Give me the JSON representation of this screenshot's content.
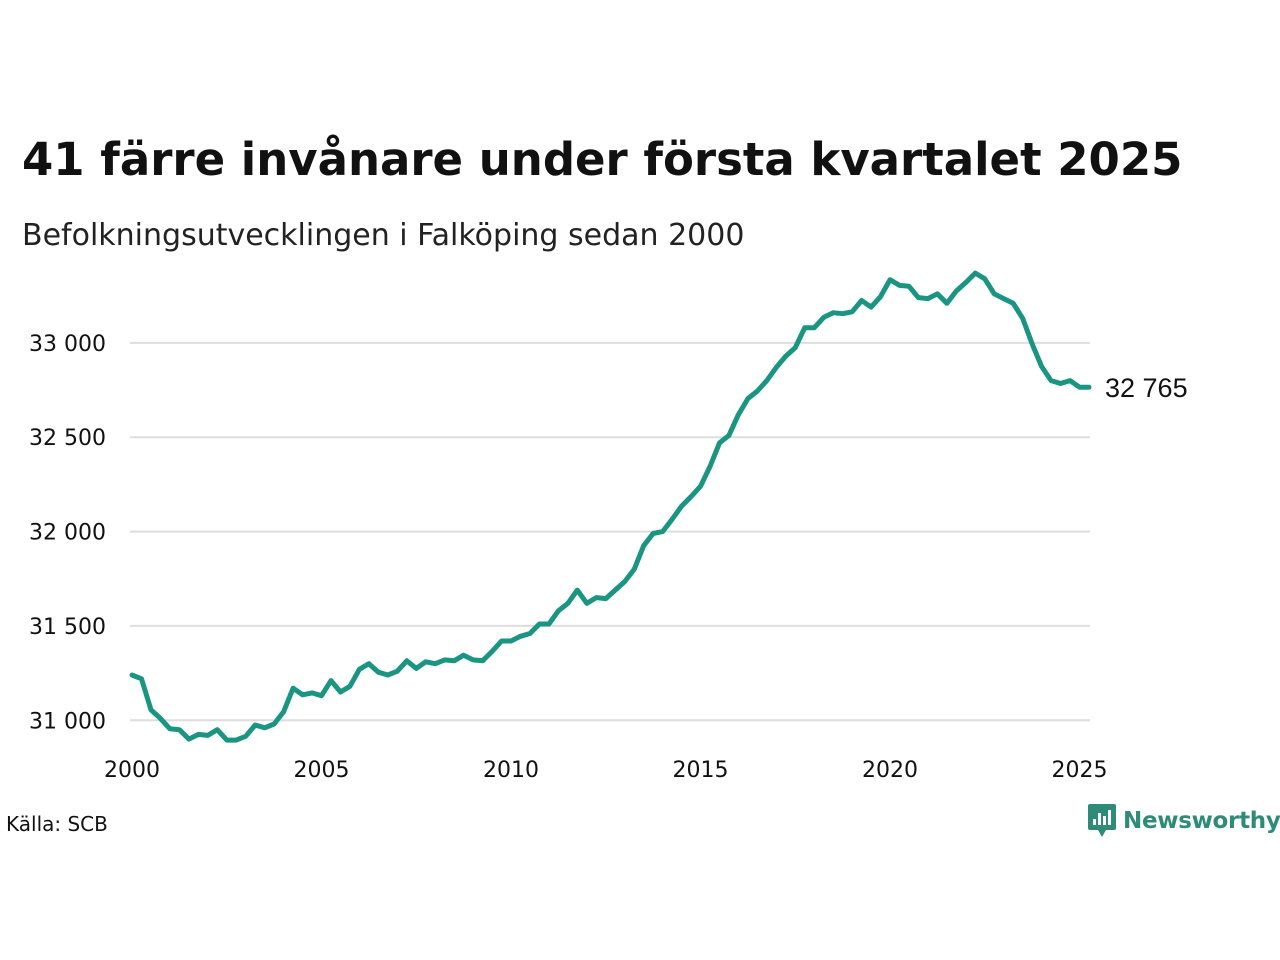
{
  "title": "41 färre invånare under första kvartalet 2025",
  "subtitle": "Befolkningsutvecklingen i Falköping sedan 2000",
  "source": "Källa: SCB",
  "brand": {
    "name": "Newsworthy",
    "icon": "newsworthy-logo-icon",
    "color": "#2e8b78"
  },
  "chart_data": {
    "type": "line",
    "title": "41 färre invånare under första kvartalet 2025",
    "subtitle": "Befolkningsutvecklingen i Falköping sedan 2000",
    "xlabel": "",
    "ylabel": "",
    "xlim": [
      2000,
      2025.25
    ],
    "ylim": [
      30800,
      33450
    ],
    "x_ticks": [
      2000,
      2005,
      2010,
      2015,
      2020,
      2025
    ],
    "x_tick_labels": [
      "2000",
      "2005",
      "2010",
      "2015",
      "2020",
      "2025"
    ],
    "y_ticks": [
      31000,
      31500,
      32000,
      32500,
      33000
    ],
    "y_tick_labels": [
      "31 000",
      "31 500",
      "32 000",
      "32 500",
      "33 000"
    ],
    "grid": "horizontal",
    "line_color": "#1a9582",
    "end_label": "32 765",
    "x": [
      2000.0,
      2000.25,
      2000.5,
      2000.75,
      2001.0,
      2001.25,
      2001.5,
      2001.75,
      2002.0,
      2002.25,
      2002.5,
      2002.75,
      2003.0,
      2003.25,
      2003.5,
      2003.75,
      2004.0,
      2004.25,
      2004.5,
      2004.75,
      2005.0,
      2005.25,
      2005.5,
      2005.75,
      2006.0,
      2006.25,
      2006.5,
      2006.75,
      2007.0,
      2007.25,
      2007.5,
      2007.75,
      2008.0,
      2008.25,
      2008.5,
      2008.75,
      2009.0,
      2009.25,
      2009.5,
      2009.75,
      2010.0,
      2010.25,
      2010.5,
      2010.75,
      2011.0,
      2011.25,
      2011.5,
      2011.75,
      2012.0,
      2012.25,
      2012.5,
      2012.75,
      2013.0,
      2013.25,
      2013.5,
      2013.75,
      2014.0,
      2014.25,
      2014.5,
      2014.75,
      2015.0,
      2015.25,
      2015.5,
      2015.75,
      2016.0,
      2016.25,
      2016.5,
      2016.75,
      2017.0,
      2017.25,
      2017.5,
      2017.75,
      2018.0,
      2018.25,
      2018.5,
      2018.75,
      2019.0,
      2019.25,
      2019.5,
      2019.75,
      2020.0,
      2020.25,
      2020.5,
      2020.75,
      2021.0,
      2021.25,
      2021.5,
      2021.75,
      2022.0,
      2022.25,
      2022.5,
      2022.75,
      2023.0,
      2023.25,
      2023.5,
      2023.75,
      2024.0,
      2024.25,
      2024.5,
      2024.75,
      2025.0,
      2025.25
    ],
    "y": [
      31240,
      31220,
      31055,
      31010,
      30955,
      30950,
      30900,
      30925,
      30920,
      30950,
      30895,
      30895,
      30915,
      30975,
      30960,
      30980,
      31045,
      31170,
      31135,
      31145,
      31130,
      31210,
      31150,
      31180,
      31270,
      31300,
      31255,
      31240,
      31260,
      31315,
      31275,
      31310,
      31300,
      31320,
      31315,
      31345,
      31320,
      31315,
      31365,
      31420,
      31420,
      31445,
      31460,
      31510,
      31510,
      31580,
      31620,
      31690,
      31620,
      31650,
      31645,
      31690,
      31735,
      31800,
      31925,
      31990,
      32000,
      32065,
      32135,
      32185,
      32240,
      32345,
      32470,
      32510,
      32620,
      32705,
      32745,
      32800,
      32870,
      32930,
      32975,
      33080,
      33080,
      33135,
      33160,
      33155,
      33165,
      33225,
      33190,
      33245,
      33335,
      33305,
      33300,
      33240,
      33235,
      33260,
      33210,
      33275,
      33320,
      33370,
      33340,
      33260,
      33235,
      33210,
      33130,
      32995,
      32875,
      32800,
      32785,
      32800,
      32765,
      32765
    ]
  }
}
